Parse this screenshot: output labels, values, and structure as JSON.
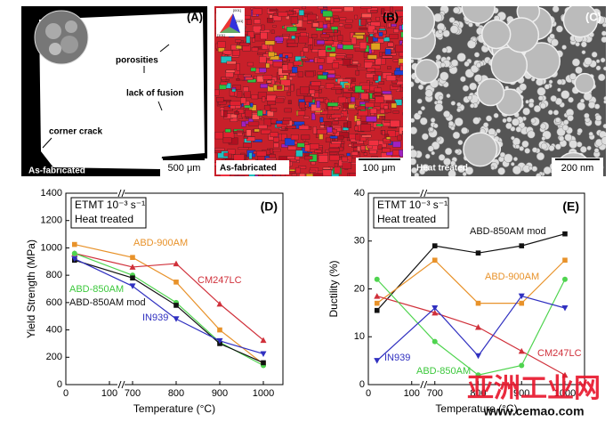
{
  "panels": [
    {
      "label": "(A)",
      "notes": [
        "porosities",
        "lack of fusion",
        "corner crack"
      ],
      "caption": "As-fabricated",
      "scale": "500 μm"
    },
    {
      "label": "(B)",
      "key": [
        "[001]",
        "[111]",
        "[101]"
      ],
      "caption": "As-fabricated",
      "scale": "100 μm"
    },
    {
      "label": "(C)",
      "caption": "Heat treated",
      "scale": "200 nm"
    }
  ],
  "watermark": [
    "亚洲工业网",
    "www.cemao.com"
  ],
  "chart_data": [
    {
      "type": "line",
      "panel": "(D)",
      "annotation": [
        "ETMT 10⁻³ s⁻¹",
        "Heat treated"
      ],
      "x": [
        20,
        700,
        800,
        900,
        1000
      ],
      "xlabel": "Temperature (°C)",
      "ylabel": "Yield Strength (MPa)",
      "xlim": [
        0,
        1000
      ],
      "xbreak": [
        100,
        700
      ],
      "xticks": [
        0,
        100,
        700,
        800,
        900,
        1000
      ],
      "ylim": [
        0,
        1400
      ],
      "yticks": [
        0,
        200,
        400,
        600,
        800,
        1000,
        1200,
        1400
      ],
      "series": [
        {
          "name": "ABD-900AM",
          "color": "#e8922a",
          "marker": "square",
          "values": [
            1025,
            930,
            750,
            400,
            150
          ]
        },
        {
          "name": "CM247LC",
          "color": "#d0303a",
          "marker": "triangle",
          "values": [
            960,
            860,
            885,
            590,
            325
          ]
        },
        {
          "name": "ABD-850AM",
          "color": "#4fd44f",
          "marker": "circle",
          "values": [
            960,
            800,
            600,
            310,
            140
          ]
        },
        {
          "name": "ABD-850AM mod",
          "color": "#111111",
          "marker": "square",
          "values": [
            910,
            780,
            580,
            300,
            160
          ]
        },
        {
          "name": "IN939",
          "color": "#3030c0",
          "marker": "down-triangle",
          "values": [
            920,
            720,
            480,
            320,
            225
          ]
        }
      ]
    },
    {
      "type": "line",
      "panel": "(E)",
      "annotation": [
        "ETMT 10⁻³ s⁻¹",
        "Heat treated"
      ],
      "x": [
        20,
        700,
        800,
        900,
        1000
      ],
      "xlabel": "Temperature (°C)",
      "ylabel": "Ductility (%)",
      "xlim": [
        0,
        1000
      ],
      "xbreak": [
        100,
        700
      ],
      "xticks": [
        0,
        100,
        700,
        800,
        900,
        1000
      ],
      "ylim": [
        0,
        40
      ],
      "yticks": [
        0,
        10,
        20,
        30,
        40
      ],
      "series": [
        {
          "name": "ABD-850AM mod",
          "color": "#111111",
          "marker": "square",
          "values": [
            15.5,
            29,
            27.5,
            29,
            31.5
          ]
        },
        {
          "name": "ABD-900AM",
          "color": "#e8922a",
          "marker": "square",
          "values": [
            17,
            26,
            17,
            17,
            26
          ]
        },
        {
          "name": "CM247LC",
          "color": "#d0303a",
          "marker": "triangle",
          "values": [
            18.5,
            15,
            12,
            7,
            2
          ]
        },
        {
          "name": "ABD-850AM",
          "color": "#4fd44f",
          "marker": "circle",
          "values": [
            22,
            9,
            2,
            4,
            22
          ]
        },
        {
          "name": "IN939",
          "color": "#3030c0",
          "marker": "down-triangle",
          "values": [
            5,
            16,
            6,
            18.5,
            16
          ]
        }
      ]
    }
  ]
}
